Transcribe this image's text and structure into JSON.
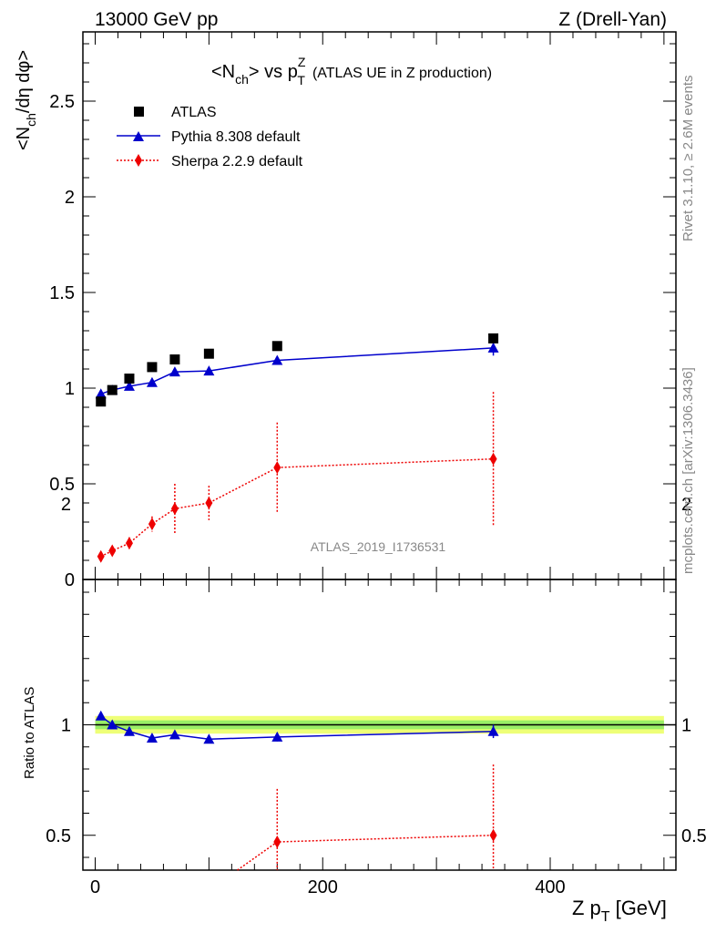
{
  "header": {
    "left": "13000 GeV pp",
    "right": "Z (Drell-Yan)"
  },
  "title": {
    "pre": "<N",
    "ch": "ch",
    "mid": "> vs p",
    "supZ": "Z",
    "subT": "T",
    "tail": "(ATLAS UE in Z production)"
  },
  "watermark": "ATLAS_2019_I1736531",
  "side_text": {
    "rivet": "Rivet 3.1.10, ≥ 2.6M events",
    "mcplots": "mcplots.cern.ch [arXiv:1306.3436]"
  },
  "axes": {
    "ylabel_top": "<N",
    "ylabel_top_sub": "ch",
    "ylabel_top_tail": "/dη dφ>",
    "ylabel_bottom": "Ratio to ATLAS",
    "xlabel_main": "Z p",
    "xlabel_sub": "T",
    "xlabel_unit": "[GeV]"
  },
  "colors": {
    "atlas": "#000000",
    "pythia": "#0000cc",
    "sherpa": "#ee0000",
    "band_outer": "#eeff77",
    "band_inner": "#99ee66"
  },
  "chart_data": [
    {
      "type": "scatter",
      "panel": "main",
      "xlim": [
        -10,
        500
      ],
      "ylim": [
        0,
        2.85
      ],
      "yticks": [
        0,
        0.5,
        1,
        1.5,
        2,
        2.5
      ],
      "ytick_labels": [
        "0",
        "0.5",
        "1",
        "1.5",
        "2",
        "2.5"
      ],
      "legend_position": "top-left",
      "series": [
        {
          "name": "ATLAS",
          "marker": "square",
          "x": [
            5,
            15,
            30,
            50,
            70,
            100,
            160,
            350
          ],
          "y": [
            0.93,
            0.99,
            1.05,
            1.11,
            1.15,
            1.18,
            1.22,
            1.26
          ],
          "err": [
            0,
            0,
            0,
            0,
            0,
            0,
            0,
            0
          ]
        },
        {
          "name": "Pythia 8.308 default",
          "marker": "triangle",
          "x": [
            5,
            15,
            30,
            50,
            70,
            100,
            160,
            350
          ],
          "y": [
            0.97,
            0.99,
            1.01,
            1.03,
            1.085,
            1.09,
            1.145,
            1.21
          ],
          "err": [
            0.005,
            0.005,
            0.005,
            0.01,
            0.01,
            0.01,
            0.02,
            0.04
          ]
        },
        {
          "name": "Sherpa 2.2.9 default",
          "marker": "diamond",
          "x": [
            5,
            15,
            30,
            50,
            70,
            100,
            160,
            350
          ],
          "y": [
            0.12,
            0.15,
            0.19,
            0.29,
            0.37,
            0.4,
            0.585,
            0.63
          ],
          "err": [
            0.02,
            0.02,
            0.03,
            0.04,
            0.13,
            0.09,
            0.235,
            0.35
          ]
        }
      ]
    },
    {
      "type": "scatter",
      "panel": "ratio",
      "xlim": [
        -10,
        500
      ],
      "ylim": [
        0.34,
        2.3
      ],
      "xticks": [
        0,
        200,
        400
      ],
      "xtick_labels": [
        "0",
        "200",
        "400"
      ],
      "yticks": [
        0.5,
        1,
        2
      ],
      "ytick_labels": [
        "0.5",
        "1",
        "2"
      ],
      "band": {
        "outer": [
          0.96,
          1.04
        ],
        "inner": [
          0.98,
          1.02
        ]
      },
      "series": [
        {
          "name": "Pythia 8.308 default",
          "x": [
            5,
            15,
            30,
            50,
            70,
            100,
            160,
            350
          ],
          "y": [
            1.04,
            1.0,
            0.97,
            0.94,
            0.955,
            0.935,
            0.945,
            0.97
          ],
          "err": [
            0.005,
            0.005,
            0.005,
            0.01,
            0.01,
            0.01,
            0.02,
            0.03
          ]
        },
        {
          "name": "Sherpa 2.2.9 default",
          "x": [
            125,
            160,
            350
          ],
          "y": [
            0.32,
            0.47,
            0.5
          ],
          "err": [
            0,
            0.24,
            0.32
          ]
        }
      ]
    }
  ]
}
